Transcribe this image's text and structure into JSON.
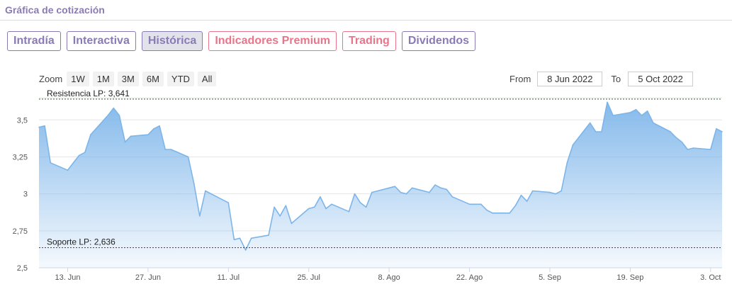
{
  "header": {
    "title": "Gráfica de cotización"
  },
  "tabs": [
    {
      "label": "Intradía",
      "state": "normal"
    },
    {
      "label": "Interactiva",
      "state": "normal"
    },
    {
      "label": "Histórica",
      "state": "active"
    },
    {
      "label": "Indicadores Premium",
      "state": "premium"
    },
    {
      "label": "Trading",
      "state": "premium"
    },
    {
      "label": "Dividendos",
      "state": "normal"
    }
  ],
  "zoom": {
    "label": "Zoom",
    "buttons": [
      "1W",
      "1M",
      "3M",
      "6M",
      "YTD",
      "All"
    ]
  },
  "range": {
    "from_label": "From",
    "from_value": "8 Jun 2022",
    "to_label": "To",
    "to_value": "5 Oct 2022"
  },
  "colors": {
    "accent": "#8a7bb5",
    "premium": "#e8758a",
    "series_line": "#7db5e8",
    "resistance": "#1f6b1f",
    "support": "#7a1f3a"
  },
  "chart_data": {
    "type": "area",
    "ylim": [
      2.5,
      3.65
    ],
    "yticks": [
      2.5,
      2.75,
      3,
      3.25,
      3.5
    ],
    "ytick_labels": [
      "2,5",
      "2,75",
      "3",
      "3,25",
      "3,5"
    ],
    "xticks": [
      "2022-06-13",
      "2022-06-27",
      "2022-07-11",
      "2022-07-25",
      "2022-08-08",
      "2022-08-22",
      "2022-09-05",
      "2022-09-19",
      "2022-10-03"
    ],
    "xtick_labels": [
      "13. Jun",
      "27. Jun",
      "11. Jul",
      "25. Jul",
      "8. Ago",
      "22. Ago",
      "5. Sep",
      "19. Sep",
      "3. Oct"
    ],
    "lines": [
      {
        "label": "Resistencia LP: 3,641",
        "value": 3.641
      },
      {
        "label": "Soporte LP: 2,636",
        "value": 2.636
      }
    ],
    "x": [
      "2022-06-08",
      "2022-06-09",
      "2022-06-10",
      "2022-06-13",
      "2022-06-14",
      "2022-06-15",
      "2022-06-16",
      "2022-06-17",
      "2022-06-20",
      "2022-06-21",
      "2022-06-22",
      "2022-06-23",
      "2022-06-24",
      "2022-06-27",
      "2022-06-28",
      "2022-06-29",
      "2022-06-30",
      "2022-07-01",
      "2022-07-04",
      "2022-07-05",
      "2022-07-06",
      "2022-07-07",
      "2022-07-08",
      "2022-07-11",
      "2022-07-12",
      "2022-07-13",
      "2022-07-14",
      "2022-07-15",
      "2022-07-18",
      "2022-07-19",
      "2022-07-20",
      "2022-07-21",
      "2022-07-22",
      "2022-07-25",
      "2022-07-26",
      "2022-07-27",
      "2022-07-28",
      "2022-07-29",
      "2022-08-01",
      "2022-08-02",
      "2022-08-03",
      "2022-08-04",
      "2022-08-05",
      "2022-08-08",
      "2022-08-09",
      "2022-08-10",
      "2022-08-11",
      "2022-08-12",
      "2022-08-15",
      "2022-08-16",
      "2022-08-17",
      "2022-08-18",
      "2022-08-19",
      "2022-08-22",
      "2022-08-23",
      "2022-08-24",
      "2022-08-25",
      "2022-08-26",
      "2022-08-29",
      "2022-08-30",
      "2022-08-31",
      "2022-09-01",
      "2022-09-02",
      "2022-09-05",
      "2022-09-06",
      "2022-09-07",
      "2022-09-08",
      "2022-09-09",
      "2022-09-12",
      "2022-09-13",
      "2022-09-14",
      "2022-09-15",
      "2022-09-16",
      "2022-09-19",
      "2022-09-20",
      "2022-09-21",
      "2022-09-22",
      "2022-09-23",
      "2022-09-26",
      "2022-09-27",
      "2022-09-28",
      "2022-09-29",
      "2022-09-30",
      "2022-10-03",
      "2022-10-04",
      "2022-10-05"
    ],
    "values": [
      3.45,
      3.46,
      3.21,
      3.16,
      3.21,
      3.26,
      3.28,
      3.4,
      3.53,
      3.58,
      3.53,
      3.35,
      3.39,
      3.4,
      3.44,
      3.46,
      3.3,
      3.3,
      3.25,
      3.07,
      2.85,
      3.02,
      3.0,
      2.94,
      2.69,
      2.7,
      2.62,
      2.7,
      2.72,
      2.91,
      2.85,
      2.92,
      2.8,
      2.9,
      2.91,
      2.98,
      2.9,
      2.93,
      2.88,
      3.0,
      2.94,
      2.91,
      3.01,
      3.04,
      3.05,
      3.01,
      3.0,
      3.04,
      3.01,
      3.06,
      3.04,
      3.03,
      2.98,
      2.93,
      2.93,
      2.93,
      2.89,
      2.87,
      2.87,
      2.92,
      2.99,
      2.95,
      3.02,
      3.01,
      3.0,
      3.02,
      3.21,
      3.33,
      3.48,
      3.42,
      3.42,
      3.62,
      3.53,
      3.55,
      3.57,
      3.53,
      3.56,
      3.48,
      3.42,
      3.38,
      3.35,
      3.3,
      3.31,
      3.3,
      3.44,
      3.42
    ]
  }
}
